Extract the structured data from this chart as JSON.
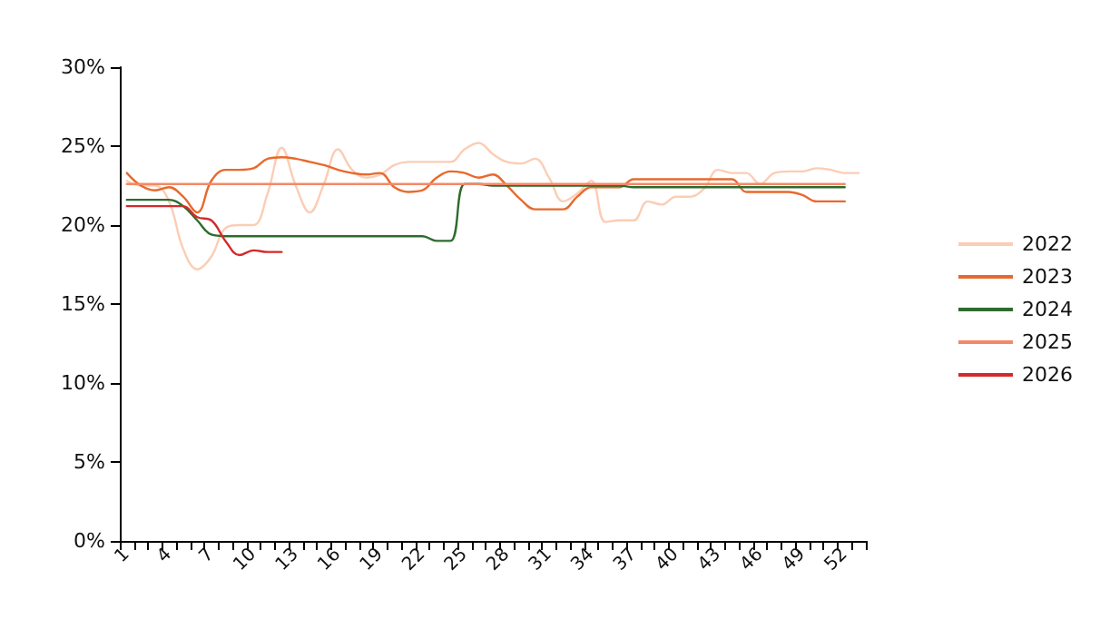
{
  "chart_data": {
    "type": "line",
    "categories": [
      "1",
      null,
      null,
      "4",
      null,
      null,
      "7",
      null,
      null,
      "10",
      null,
      null,
      "13",
      null,
      null,
      "16",
      null,
      null,
      "19",
      null,
      null,
      "22",
      null,
      null,
      "25",
      null,
      null,
      "28",
      null,
      null,
      "31",
      null,
      null,
      "34",
      null,
      null,
      "37",
      null,
      null,
      "40",
      null,
      null,
      "43",
      null,
      null,
      "46",
      null,
      null,
      "49",
      null,
      null,
      "52",
      null
    ],
    "series": [
      {
        "name": "2022",
        "color": "#fbcdb5",
        "values": [
          22.8,
          22.5,
          22.5,
          21.5,
          18.5,
          17.2,
          18.0,
          19.8,
          20.0,
          20.0,
          22.0,
          24.9,
          22.5,
          20.8,
          22.6,
          24.8,
          23.5,
          23.0,
          23.2,
          23.8,
          24.0,
          24.0,
          24.0,
          24.0,
          24.8,
          25.2,
          24.5,
          24.0,
          23.9,
          24.2,
          23.0,
          21.5,
          22.0,
          22.8,
          20.2,
          20.3,
          20.3,
          21.5,
          21.3,
          21.8,
          21.8,
          22.3,
          23.5,
          23.3,
          23.3,
          22.6,
          23.3,
          23.4,
          23.4,
          23.6,
          23.5,
          23.3,
          23.3
        ]
      },
      {
        "name": "2023",
        "color": "#e8692c",
        "values": [
          23.3,
          22.5,
          22.2,
          22.4,
          21.8,
          20.8,
          22.8,
          23.5,
          23.5,
          23.6,
          24.2,
          24.3,
          24.2,
          24.0,
          23.8,
          23.5,
          23.3,
          23.2,
          23.3,
          22.4,
          22.1,
          22.2,
          23.0,
          23.4,
          23.3,
          23.0,
          23.2,
          22.5,
          21.6,
          21.0,
          21.0,
          21.0,
          21.8,
          22.4,
          22.4,
          22.4,
          22.9,
          22.9,
          22.9,
          22.9,
          22.9,
          22.9,
          22.9,
          22.9,
          22.1,
          22.1,
          22.1,
          22.1,
          21.9,
          21.5,
          21.5,
          21.5,
          null
        ]
      },
      {
        "name": "2024",
        "color": "#2e6b2e",
        "values": [
          21.6,
          21.6,
          21.6,
          21.6,
          21.2,
          20.3,
          19.4,
          19.3,
          19.3,
          19.3,
          19.3,
          19.3,
          19.3,
          19.3,
          19.3,
          19.3,
          19.3,
          19.3,
          19.3,
          19.3,
          19.3,
          19.3,
          19.0,
          19.0,
          22.6,
          22.6,
          22.5,
          22.5,
          22.5,
          22.5,
          22.5,
          22.5,
          22.5,
          22.5,
          22.5,
          22.5,
          22.4,
          22.4,
          22.4,
          22.4,
          22.4,
          22.4,
          22.4,
          22.4,
          22.4,
          22.4,
          22.4,
          22.4,
          22.4,
          22.4,
          22.4,
          22.4,
          null
        ]
      },
      {
        "name": "2025",
        "color": "#f2896a",
        "values": [
          22.6,
          22.6,
          22.6,
          22.6,
          22.6,
          22.6,
          22.6,
          22.6,
          22.6,
          22.6,
          22.6,
          22.6,
          22.6,
          22.6,
          22.6,
          22.6,
          22.6,
          22.6,
          22.6,
          22.6,
          22.6,
          22.6,
          22.6,
          22.6,
          22.6,
          22.6,
          22.6,
          22.6,
          22.6,
          22.6,
          22.6,
          22.6,
          22.6,
          22.6,
          22.6,
          22.6,
          22.6,
          22.6,
          22.6,
          22.6,
          22.6,
          22.6,
          22.6,
          22.6,
          22.6,
          22.6,
          22.6,
          22.6,
          22.6,
          22.6,
          22.6,
          22.6,
          null
        ]
      },
      {
        "name": "2026",
        "color": "#d42a2a",
        "values": [
          21.2,
          21.2,
          21.2,
          21.2,
          21.2,
          20.5,
          20.3,
          19.0,
          18.1,
          18.4,
          18.3,
          18.3,
          null,
          null,
          null,
          null,
          null,
          null,
          null,
          null,
          null,
          null,
          null,
          null,
          null,
          null,
          null,
          null,
          null,
          null,
          null,
          null,
          null,
          null,
          null,
          null,
          null,
          null,
          null,
          null,
          null,
          null,
          null,
          null,
          null,
          null,
          null,
          null,
          null,
          null,
          null,
          null,
          null
        ]
      }
    ],
    "ylim": [
      0,
      30
    ],
    "yticks": [
      {
        "value": 0,
        "label": "0%"
      },
      {
        "value": 5,
        "label": "5%"
      },
      {
        "value": 10,
        "label": "10%"
      },
      {
        "value": 15,
        "label": "15%"
      },
      {
        "value": 20,
        "label": "20%"
      },
      {
        "value": 25,
        "label": "25%"
      },
      {
        "value": 30,
        "label": "30%"
      }
    ],
    "grid": false,
    "legend": "right",
    "marker": "none",
    "line_style": "solid"
  }
}
